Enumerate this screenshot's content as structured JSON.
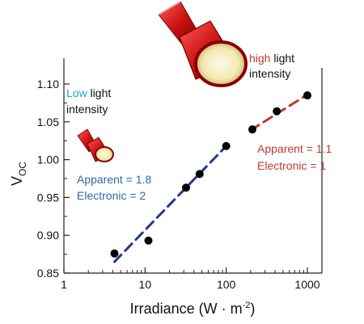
{
  "chart_data": {
    "type": "scatter",
    "xlabel": "Irradiance (W · m",
    "xlabel_sup": "-2",
    "xlabel_close": ")",
    "ylabel": "V",
    "ylabel_sub": "OC",
    "x_scale": "log",
    "xlim": [
      1,
      1000
    ],
    "ylim": [
      0.85,
      1.1
    ],
    "x_ticks": [
      1,
      10,
      100,
      1000
    ],
    "x_tick_labels": [
      "1",
      "10",
      "100",
      "1000"
    ],
    "y_ticks": [
      0.85,
      0.9,
      0.95,
      1.0,
      1.05,
      1.1
    ],
    "y_tick_labels": [
      "0.85",
      "0.90",
      "0.95",
      "1.00",
      "1.05",
      "1.10"
    ],
    "grid": false,
    "series": [
      {
        "x": [
          4.2,
          11,
          32,
          47,
          100,
          210,
          420,
          1000
        ],
        "y": [
          0.876,
          0.893,
          0.963,
          0.981,
          1.018,
          1.04,
          1.064,
          1.085
        ],
        "color": "#000000"
      }
    ],
    "fits": [
      {
        "x": [
          4.2,
          100
        ],
        "y": [
          0.865,
          1.018
        ],
        "color": "#1f3a8c",
        "style": "dashed"
      },
      {
        "x": [
          200,
          1000
        ],
        "y": [
          1.039,
          1.086
        ],
        "color": "#c0392b",
        "style": "dashed"
      }
    ],
    "annotations": {
      "low": {
        "word1": "Low",
        "word2": "light",
        "word3": "intensity",
        "color1": "#1aa3d9",
        "color2": "#111111"
      },
      "high": {
        "word1": "high",
        "word2": "light",
        "word3": "intensity",
        "color1": "#c0392b",
        "color2": "#111111"
      },
      "left_ideality": {
        "line1": "Apparent = 1.8",
        "line2": "Electronic = 2",
        "color": "#2a6aa8"
      },
      "right_ideality": {
        "line1": "Apparent = 1.1",
        "line2": "Electronic = 1",
        "color": "#c0392b"
      }
    },
    "icons": [
      "flashlight-small-icon",
      "flashlight-large-icon"
    ]
  }
}
